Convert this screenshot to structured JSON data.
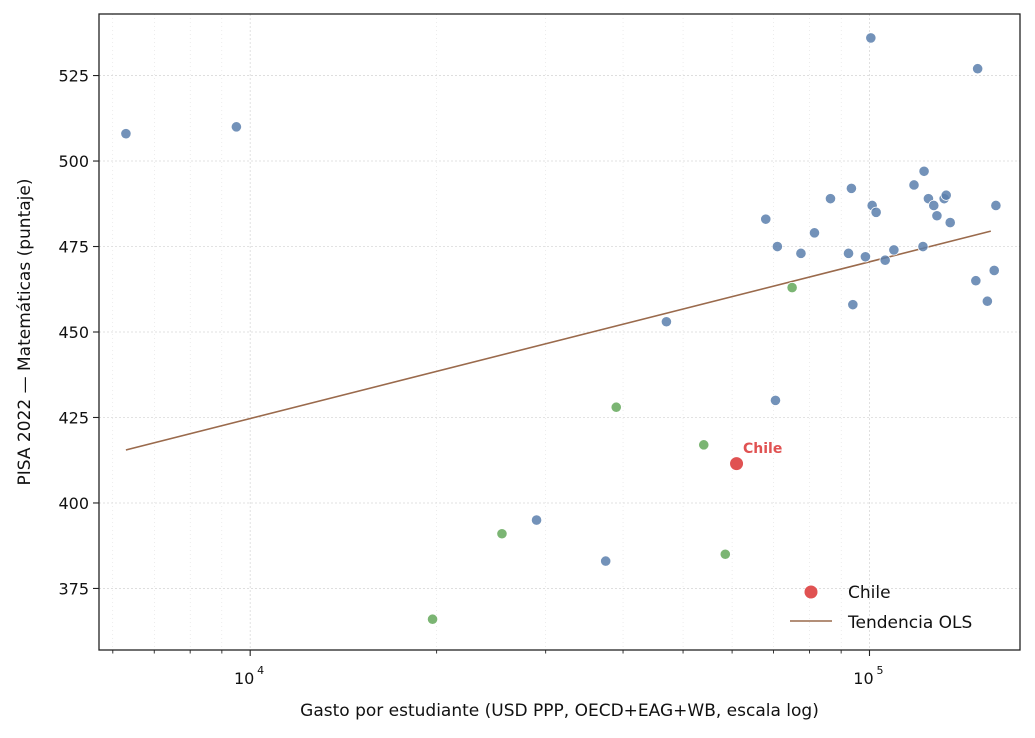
{
  "chart_data": {
    "type": "scatter",
    "title": "",
    "xlabel": "Gasto por estudiante (USD PPP, OECD+EAG+WB, escala log)",
    "ylabel": "PISA 2022 — Matemáticas (puntaje)",
    "xscale": "log",
    "xlim": [
      5700,
      175000
    ],
    "ylim": [
      357,
      543
    ],
    "grid": true,
    "legend_position": "bottom-right",
    "x_ticks": [
      {
        "value": 10000,
        "base": "10",
        "exp": "4"
      },
      {
        "value": 100000,
        "base": "10",
        "exp": "5"
      }
    ],
    "y_ticks": [
      375,
      400,
      425,
      450,
      475,
      500,
      525
    ],
    "colors": {
      "oecd": "#5b7fad",
      "other": "#64a85a",
      "chile": "#e05252",
      "trend": "#9a6a4c",
      "grid": "#d9d9d9"
    },
    "points_oecd": [
      [
        6300,
        508
      ],
      [
        9500,
        510
      ],
      [
        29000,
        395
      ],
      [
        37500,
        383
      ],
      [
        47000,
        453
      ],
      [
        68000,
        483
      ],
      [
        71000,
        475
      ],
      [
        70500,
        430
      ],
      [
        77500,
        473
      ],
      [
        81500,
        479
      ],
      [
        86500,
        489
      ],
      [
        92500,
        473
      ],
      [
        93500,
        492
      ],
      [
        94000,
        458
      ],
      [
        98500,
        472
      ],
      [
        101000,
        487
      ],
      [
        100500,
        536
      ],
      [
        102500,
        485
      ],
      [
        106000,
        471
      ],
      [
        109500,
        474
      ],
      [
        118000,
        493
      ],
      [
        122000,
        475
      ],
      [
        122500,
        497
      ],
      [
        124500,
        489
      ],
      [
        127000,
        487
      ],
      [
        128500,
        484
      ],
      [
        132000,
        489
      ],
      [
        133000,
        490
      ],
      [
        135000,
        482
      ],
      [
        148500,
        465
      ],
      [
        149500,
        527
      ],
      [
        155000,
        459
      ],
      [
        159000,
        468
      ],
      [
        160000,
        487
      ]
    ],
    "points_other": [
      [
        19700,
        366
      ],
      [
        25500,
        391
      ],
      [
        39000,
        428
      ],
      [
        54000,
        417
      ],
      [
        58500,
        385
      ],
      [
        75000,
        463
      ]
    ],
    "chile": {
      "x": 61000,
      "y": 411.5,
      "label": "Chile"
    },
    "trend": {
      "x": [
        6300,
        157000
      ],
      "y": [
        415.5,
        479.5
      ]
    },
    "legend": [
      {
        "label": "Chile",
        "kind": "point"
      },
      {
        "label": "Tendencia OLS",
        "kind": "line"
      }
    ]
  }
}
